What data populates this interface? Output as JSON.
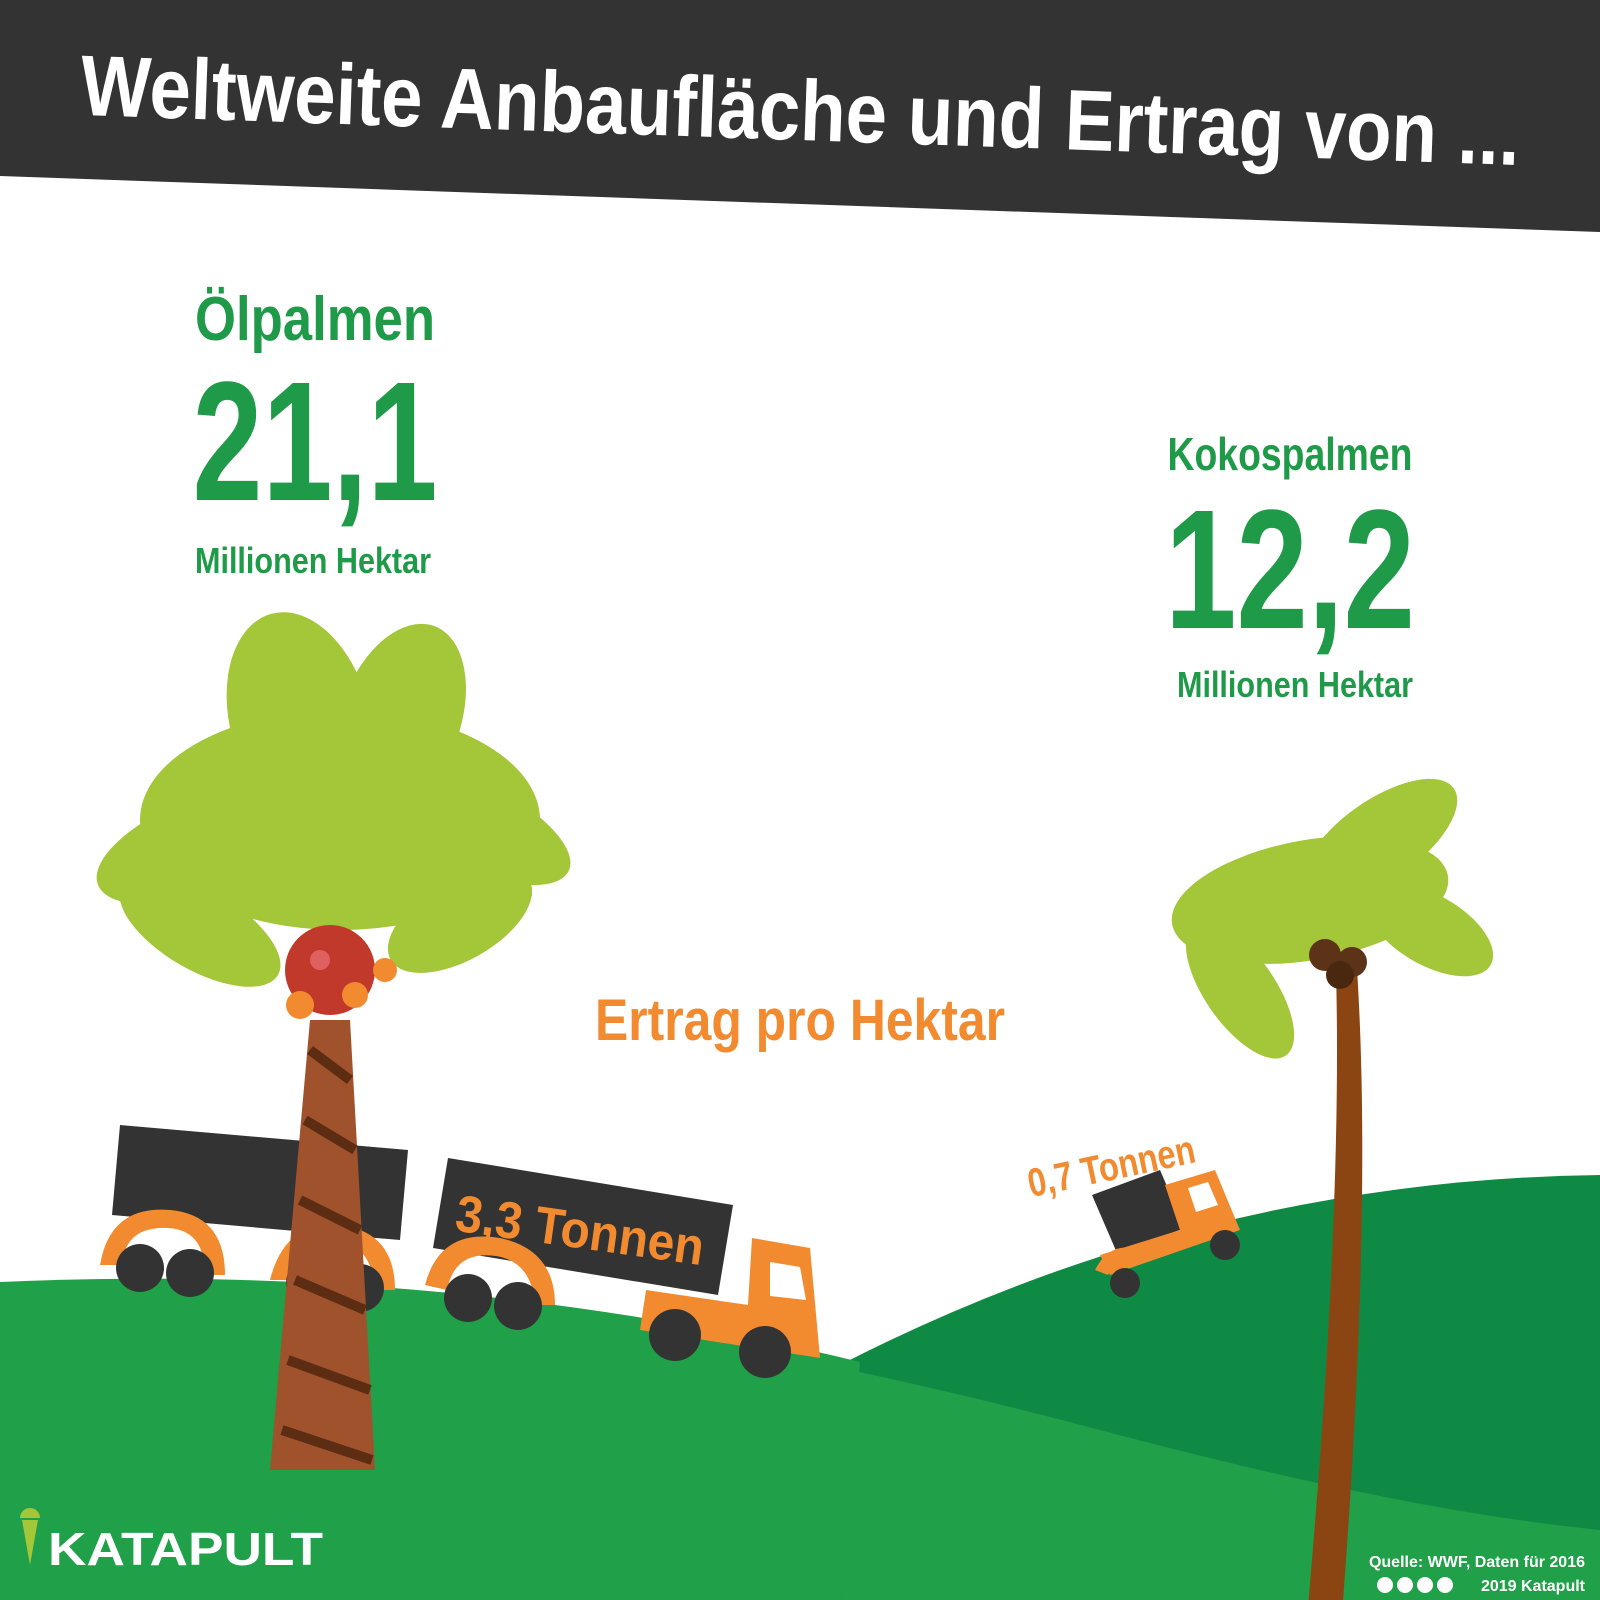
{
  "header": {
    "title": "Weltweite Anbaufläche und Ertrag von ..."
  },
  "oil_palm": {
    "name": "Ölpalmen",
    "area": "21,1",
    "area_unit": "Millionen Hektar",
    "yield": "3,3 Tonnen"
  },
  "coconut_palm": {
    "name": "Kokospalmen",
    "area": "12,2",
    "area_unit": "Millionen Hektar",
    "yield": "0,7 Tonnen"
  },
  "yield_heading": "Ertrag pro Hektar",
  "logo": "KATAPULT",
  "footer": {
    "source": "Quelle: WWF, Daten für 2016",
    "copyright": "2019 Katapult"
  }
}
